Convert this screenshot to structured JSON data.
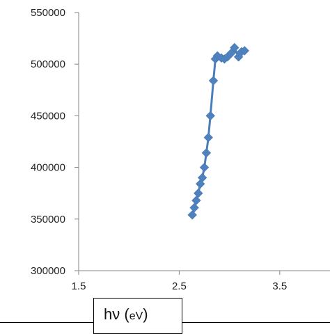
{
  "chart_data": {
    "type": "scatter",
    "title": "",
    "xlabel": "hν (eV)",
    "xlabel_main": "hν (",
    "xlabel_unit": "eV",
    "xlabel_close": ")",
    "ylabel": "",
    "xlim": [
      1.5,
      4.0
    ],
    "ylim": [
      300000,
      550000
    ],
    "x_ticks": [
      1.5,
      2.5,
      3.5
    ],
    "x_tick_labels": [
      "1.5",
      "2.5",
      "3.5"
    ],
    "y_ticks": [
      300000,
      350000,
      400000,
      450000,
      500000,
      550000
    ],
    "y_tick_labels": [
      "300000",
      "350000",
      "400000",
      "450000",
      "500000",
      "550000"
    ],
    "grid": false,
    "legend": "none",
    "marker": "diamond",
    "line_color": "#4a7ebb",
    "marker_color": "#4f81bd",
    "series": [
      {
        "x": [
          2.63,
          2.65,
          2.67,
          2.69,
          2.71,
          2.73,
          2.75,
          2.77,
          2.79,
          2.81,
          2.84,
          2.86,
          2.88,
          2.92,
          2.95,
          2.98,
          3.02,
          3.05,
          3.09,
          3.12,
          3.15
        ],
        "y": [
          354000,
          361000,
          368000,
          375000,
          384000,
          390000,
          400000,
          414000,
          429000,
          450000,
          484000,
          505000,
          508000,
          506000,
          505000,
          507000,
          511000,
          516000,
          507000,
          512000,
          513000
        ]
      }
    ]
  }
}
